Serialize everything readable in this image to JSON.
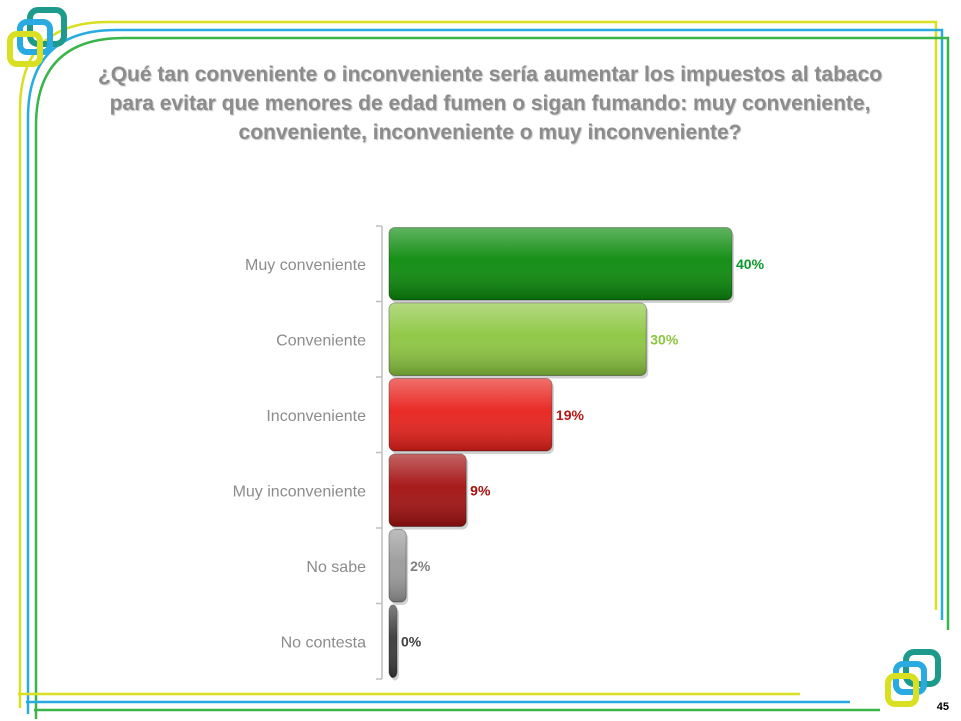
{
  "page": {
    "title": "¿Qué tan conveniente o inconveniente sería aumentar los impuestos al tabaco para evitar que menores de edad fumen o sigan fumando: muy conveniente, conveniente, inconveniente o muy inconveniente?",
    "page_number": "45"
  },
  "colors": {
    "frame_yellow": "#d9e021",
    "frame_blue": "#29abe2",
    "frame_green": "#39b54a",
    "logo_teal": "#1d9a8c"
  },
  "chart_data": {
    "type": "bar",
    "orientation": "horizontal",
    "categories": [
      "Muy conveniente",
      "Conveniente",
      "Inconveniente",
      "Muy inconveniente",
      "No sabe",
      "No contesta"
    ],
    "values": [
      40,
      30,
      19,
      9,
      2,
      0
    ],
    "value_labels": [
      "40%",
      "30%",
      "19%",
      "9%",
      "2%",
      "0%"
    ],
    "unit": "%",
    "xlim": [
      0,
      40
    ],
    "grid": false,
    "bar_colors": [
      "#0a8a0a",
      "#8cc63f",
      "#e8201a",
      "#a30f0f",
      "#9a9a9a",
      "#3a3a3a"
    ],
    "label_colors": [
      "#0a9a2a",
      "#8cc63f",
      "#b81414",
      "#a30f0f",
      "#7f7f7f",
      "#404040"
    ]
  }
}
